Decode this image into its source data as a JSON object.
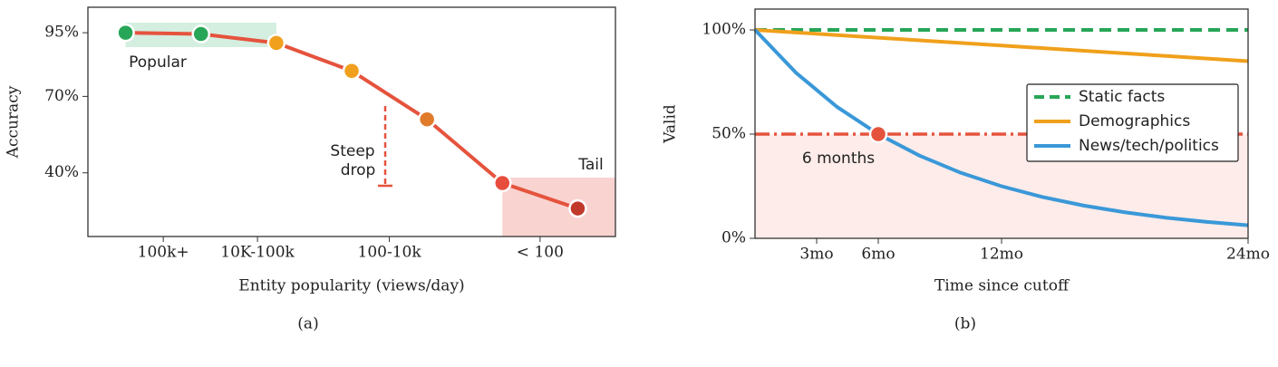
{
  "chart_data": [
    {
      "type": "line",
      "xlabel": "Entity popularity (views/day)",
      "ylabel": "Accuracy",
      "caption": "(a)",
      "x": [
        0,
        1,
        2,
        3,
        4,
        5,
        6
      ],
      "xlim": [
        -0.5,
        6.5
      ],
      "xticks": [
        {
          "value": 0.5,
          "label": "100k+"
        },
        {
          "value": 1.75,
          "label": "10K-100k"
        },
        {
          "value": 3.5,
          "label": "100-10k"
        },
        {
          "value": 5.5,
          "label": "< 100"
        }
      ],
      "ylim": [
        15,
        105
      ],
      "yticks": [
        {
          "value": 40,
          "label": "40%"
        },
        {
          "value": 70,
          "label": "70%"
        },
        {
          "value": 95,
          "label": "95%"
        }
      ],
      "series": [
        {
          "color": "#e5533d",
          "values": [
            95,
            94.5,
            91,
            80,
            61,
            36,
            26
          ],
          "point_colors": [
            "#27a657",
            "#27a657",
            "#f0a01c",
            "#f0a01c",
            "#e07b2c",
            "#e84c3d",
            "#c0392b"
          ]
        }
      ],
      "annotations": [
        {
          "lines": [
            "Popular"
          ],
          "color": "#2ca05a"
        },
        {
          "lines": [
            "Steep",
            "drop"
          ],
          "color": "#e5533d"
        },
        {
          "lines": [
            "Tail"
          ],
          "color": "#c0392b"
        }
      ],
      "grid": false
    },
    {
      "type": "line",
      "xlabel": "Time since cutoff",
      "ylabel": "Valid",
      "caption": "(b)",
      "x": [
        0,
        2,
        4,
        6,
        8,
        10,
        12,
        14,
        16,
        18,
        20,
        22,
        24
      ],
      "xlim": [
        0,
        24
      ],
      "xticks": [
        {
          "value": 3,
          "label": "3mo"
        },
        {
          "value": 6,
          "label": "6mo"
        },
        {
          "value": 12,
          "label": "12mo"
        },
        {
          "value": 24,
          "label": "24mo"
        }
      ],
      "ylim": [
        0,
        110
      ],
      "yticks": [
        {
          "value": 0,
          "label": "0%"
        },
        {
          "value": 50,
          "label": "50%"
        },
        {
          "value": 100,
          "label": "100%"
        }
      ],
      "series": [
        {
          "name": "Static facts",
          "color": "#27a657",
          "dashed": true,
          "values": [
            100,
            100,
            100,
            100,
            100,
            100,
            100,
            100,
            100,
            100,
            100,
            100,
            100
          ]
        },
        {
          "name": "Demographics",
          "color": "#f0a01c",
          "dashed": false,
          "values": [
            100,
            98.75,
            97.5,
            96.25,
            95,
            93.75,
            92.5,
            91.25,
            90,
            88.75,
            87.5,
            86.25,
            85
          ]
        },
        {
          "name": "News/tech/politics",
          "color": "#3a98d8",
          "dashed": false,
          "values": [
            100,
            79.4,
            63,
            50,
            39.7,
            31.5,
            25,
            19.8,
            15.7,
            12.5,
            9.9,
            7.9,
            6.25
          ]
        }
      ],
      "threshold": {
        "value": 50,
        "color": "#e5533d"
      },
      "marker": {
        "x": 6,
        "y": 50
      },
      "annotations": [
        {
          "lines": [
            "6 months"
          ],
          "color": "#e5533d"
        }
      ],
      "legend": "center right",
      "grid": false
    }
  ]
}
